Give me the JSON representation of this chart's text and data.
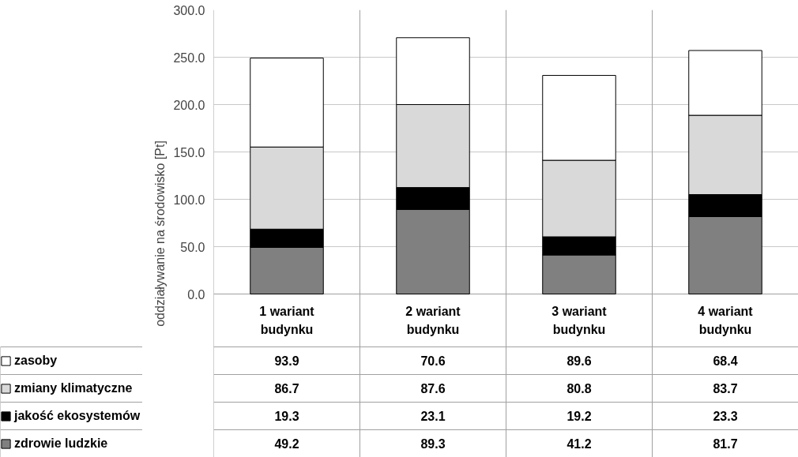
{
  "chart_data": {
    "type": "bar",
    "stacked": true,
    "ylabel": "oddziaływanie na środowisko [Pt]",
    "categories": [
      "1 wariant\nbudynku",
      "2 wariant\nbudynku",
      "3 wariant\nbudynku",
      "4 wariant\nbudynku"
    ],
    "series": [
      {
        "name": "zdrowie ludzkie",
        "color": "#808080",
        "values": [
          49.2,
          89.3,
          41.2,
          81.7
        ]
      },
      {
        "name": "jakość ekosystemów",
        "color": "#000000",
        "values": [
          19.3,
          23.1,
          19.2,
          23.3
        ]
      },
      {
        "name": "zmiany klimatyczne",
        "color": "#d9d9d9",
        "values": [
          86.7,
          87.6,
          80.8,
          83.7
        ]
      },
      {
        "name": "zasoby",
        "color": "#ffffff",
        "values": [
          93.9,
          70.6,
          89.6,
          68.4
        ]
      }
    ],
    "ylim": [
      0,
      300
    ],
    "yticks": [
      {
        "value": 0,
        "label": "0.0"
      },
      {
        "value": 50,
        "label": "50.0"
      },
      {
        "value": 100,
        "label": "100.0"
      },
      {
        "value": 150,
        "label": "150.0"
      },
      {
        "value": 200,
        "label": "200.0"
      },
      {
        "value": 250,
        "label": "250.0"
      },
      {
        "value": 300,
        "label": "300.0"
      }
    ],
    "grid": "y",
    "legend": "bottom",
    "data_labels": true
  }
}
